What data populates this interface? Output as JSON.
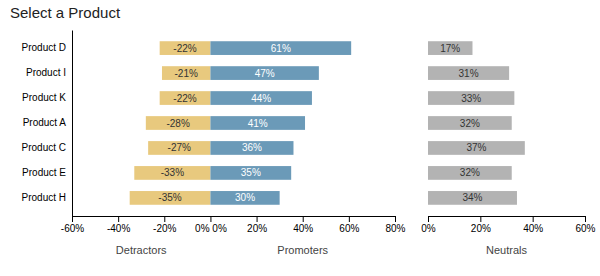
{
  "chart_data": [
    {
      "type": "bar",
      "orientation": "horizontal",
      "title": "Select a Product",
      "categories": [
        "Product D",
        "Product I",
        "Product K",
        "Product A",
        "Product C",
        "Product E",
        "Product H"
      ],
      "series": [
        {
          "name": "Detractors",
          "color": "#e8c97e",
          "values": [
            -22,
            -21,
            -22,
            -28,
            -27,
            -33,
            -35
          ],
          "value_labels": [
            "-22%",
            "-21%",
            "-22%",
            "-28%",
            "-27%",
            "-33%",
            "-35%"
          ]
        },
        {
          "name": "Promoters",
          "color": "#6b9ab8",
          "values": [
            61,
            47,
            44,
            41,
            36,
            35,
            30
          ],
          "value_labels": [
            "61%",
            "47%",
            "44%",
            "41%",
            "36%",
            "35%",
            "30%"
          ]
        }
      ],
      "xlim": [
        -60,
        80
      ],
      "xticks": [
        {
          "value": -60,
          "label": "-60%"
        },
        {
          "value": -40,
          "label": "-40%"
        },
        {
          "value": -20,
          "label": "-20%"
        },
        {
          "value": 0,
          "label": "0% 0%"
        },
        {
          "value": 20,
          "label": "20%"
        },
        {
          "value": 40,
          "label": "40%"
        },
        {
          "value": 60,
          "label": "60%"
        },
        {
          "value": 80,
          "label": "80%"
        }
      ],
      "data_labels": true
    },
    {
      "type": "bar",
      "orientation": "horizontal",
      "xlabel": "Neutrals",
      "categories": [
        null,
        null,
        null,
        null,
        null,
        null,
        null
      ],
      "values": [
        17,
        31,
        33,
        32,
        37,
        32,
        34
      ],
      "value_labels": [
        "17%",
        "31%",
        "33%",
        "32%",
        "37%",
        "32%",
        "34%"
      ],
      "color": "#b3b3b3",
      "xlim": [
        0,
        60
      ],
      "xticks": [
        {
          "value": 0,
          "label": "0%"
        },
        {
          "value": 20,
          "label": "20%"
        },
        {
          "value": 40,
          "label": "40%"
        },
        {
          "value": 60,
          "label": "60%"
        }
      ],
      "data_labels": true,
      "tick_labels": "x"
    }
  ]
}
